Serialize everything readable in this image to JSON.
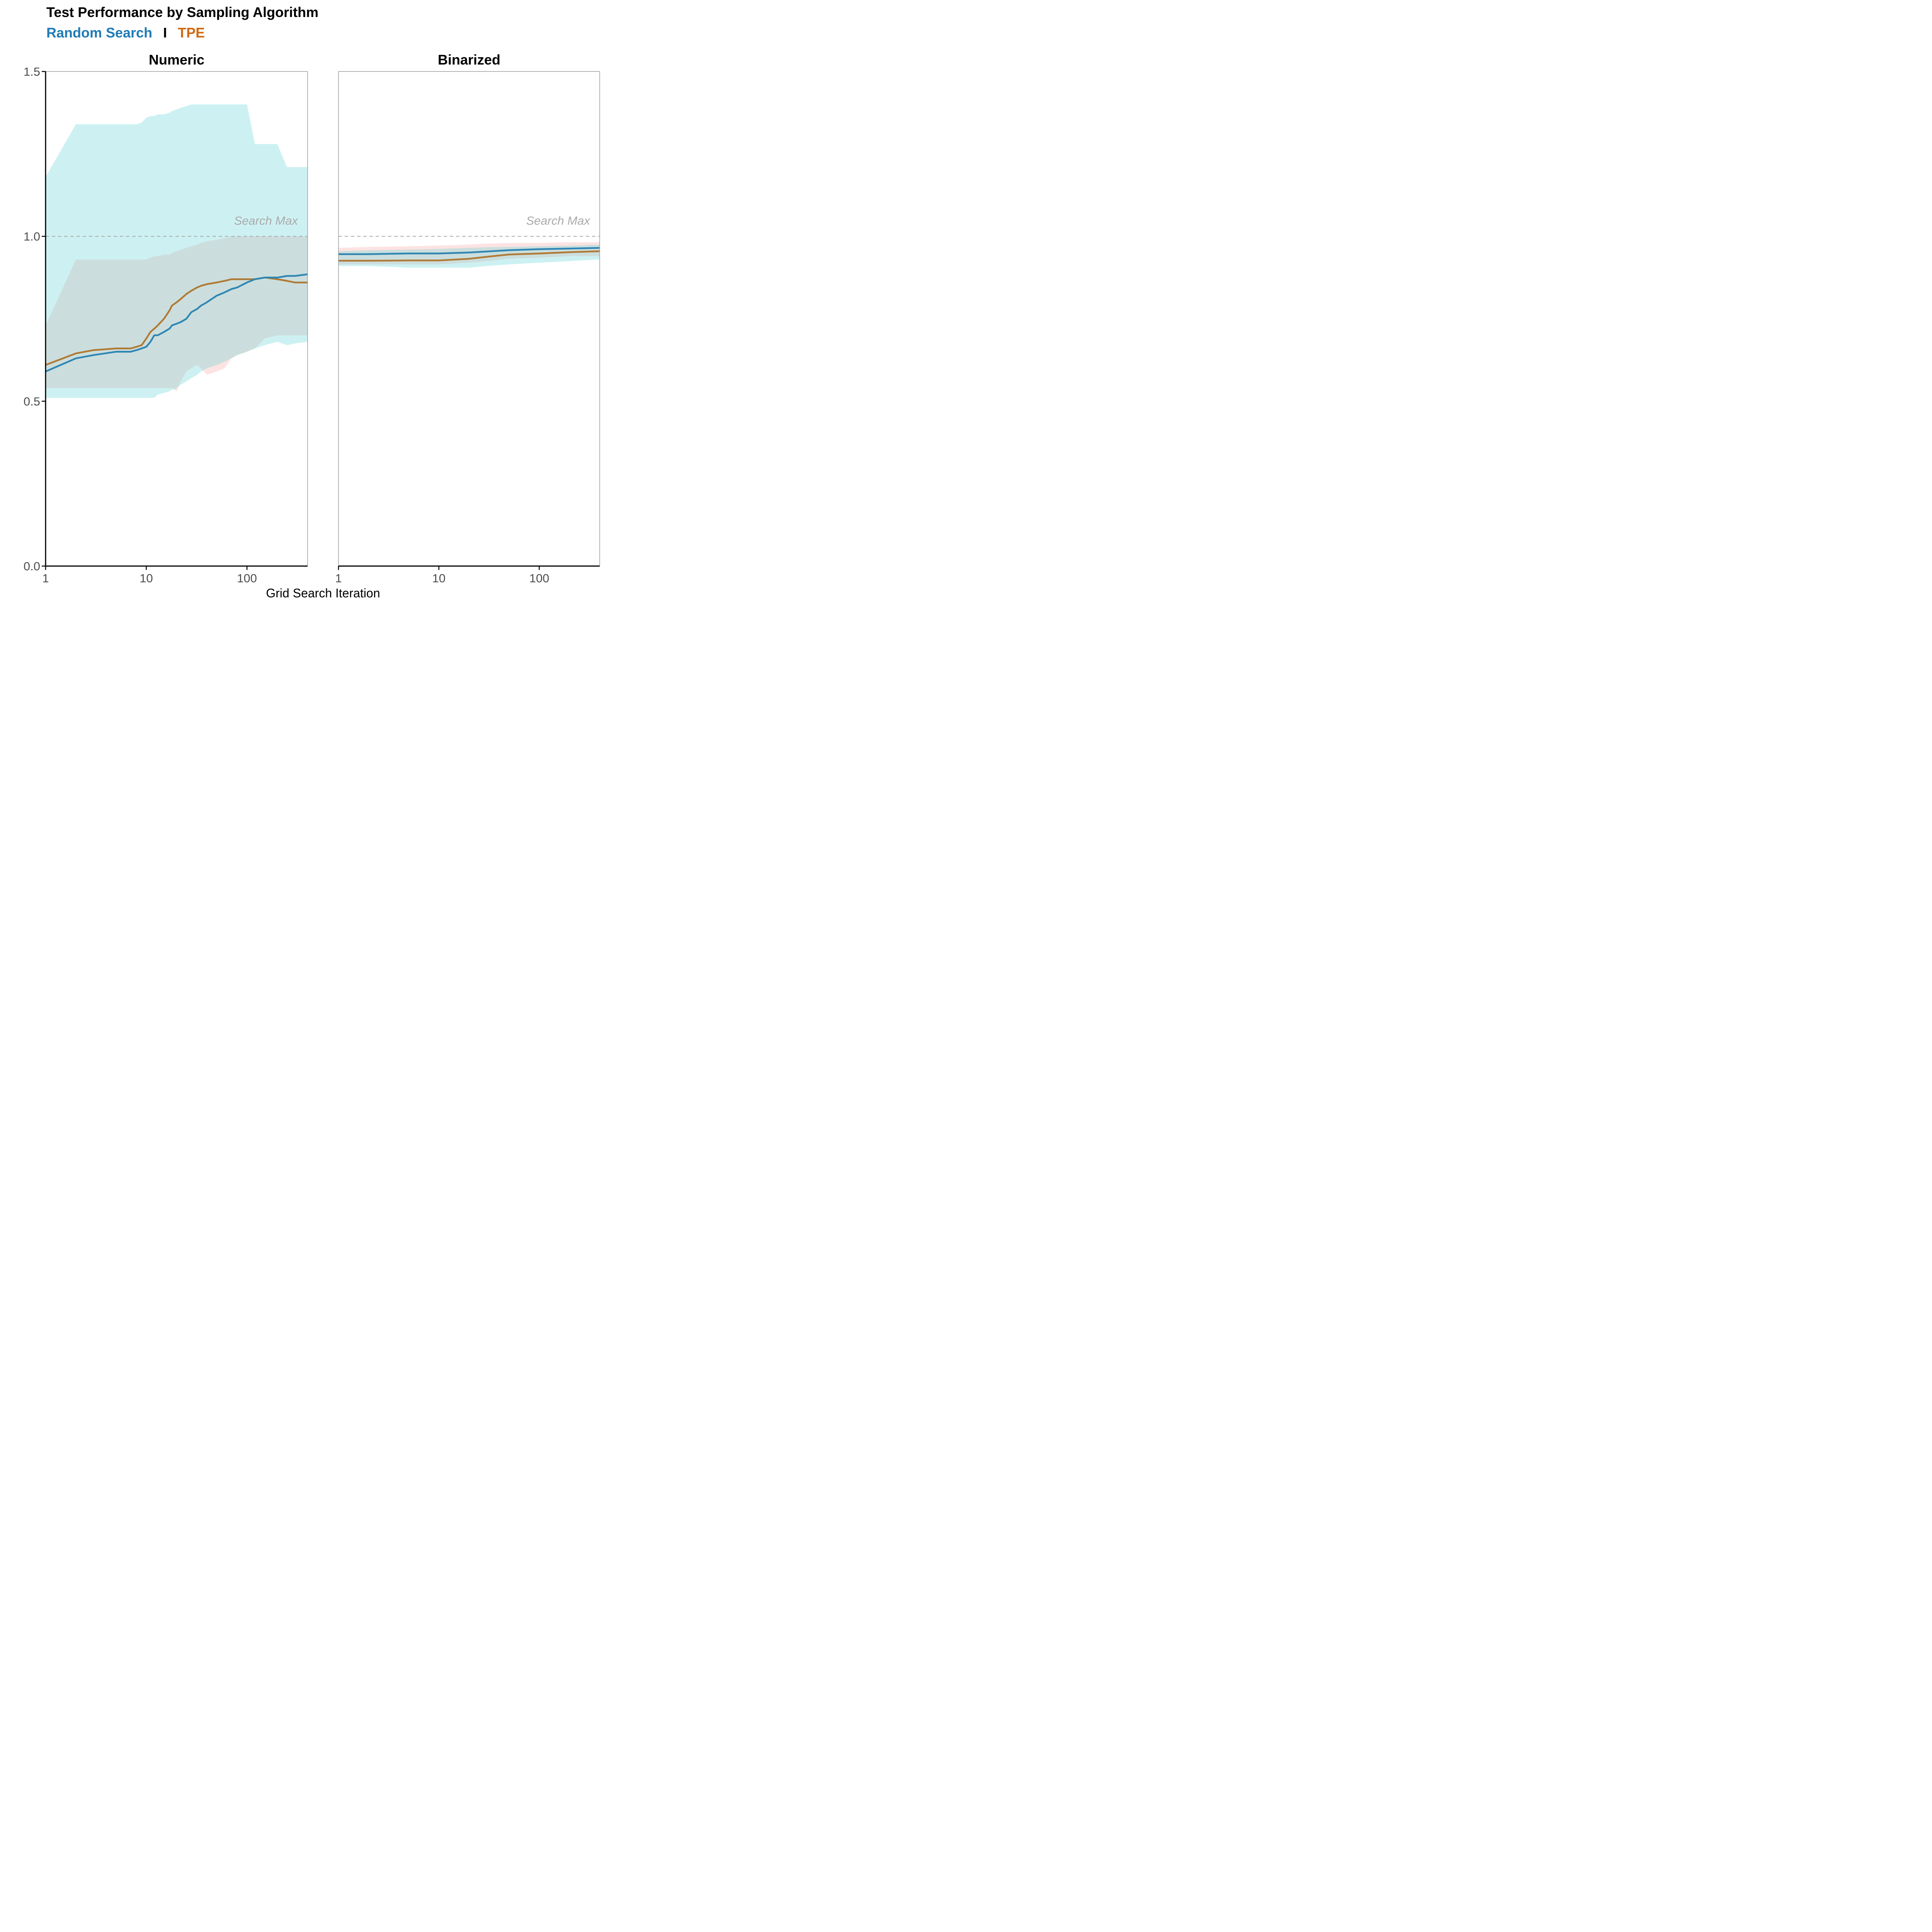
{
  "chart_data": {
    "type": "line",
    "title": "Test Performance by Sampling Algorithm",
    "subtitle": {
      "series_a": "Random Search",
      "separator": "I",
      "series_b": "TPE"
    },
    "xlabel": "Grid Search Iteration",
    "ylabel": "",
    "x_scale": "log",
    "xlim": [
      1,
      400
    ],
    "ylim": [
      0,
      1.5
    ],
    "x_ticks": [
      1,
      10,
      100
    ],
    "x_tick_labels": [
      "1",
      "10",
      "100"
    ],
    "y_ticks": [
      0,
      0.5,
      1.0,
      1.5
    ],
    "y_tick_labels": [
      "0.0",
      "0.5",
      "1.0",
      "1.5"
    ],
    "reference_line": {
      "y": 1.0,
      "label": "Search Max",
      "style": "dashed"
    },
    "colors": {
      "random_line": "#2f86b3",
      "tpe_line": "#b07a35",
      "random_band": "#cdf1f2",
      "tpe_band": "#fde3e3",
      "overlap_band": "#cbdedd",
      "random_title": "#1f7bb6",
      "tpe_title": "#d0690f",
      "reference": "#aaaaaa"
    },
    "panels": [
      {
        "name": "Numeric",
        "series": [
          {
            "name": "Random Search",
            "x": [
              1,
              2,
              3,
              5,
              7,
              8,
              9,
              10,
              11,
              12,
              13,
              15,
              17,
              18,
              20,
              22,
              25,
              28,
              32,
              35,
              40,
              50,
              60,
              70,
              80,
              100,
              120,
              150,
              200,
              250,
              300,
              400
            ],
            "mean": [
              0.59,
              0.63,
              0.64,
              0.65,
              0.65,
              0.655,
              0.66,
              0.665,
              0.68,
              0.7,
              0.7,
              0.71,
              0.72,
              0.73,
              0.735,
              0.74,
              0.75,
              0.77,
              0.78,
              0.79,
              0.8,
              0.82,
              0.83,
              0.84,
              0.845,
              0.86,
              0.87,
              0.875,
              0.875,
              0.88,
              0.88,
              0.885
            ],
            "lower": [
              0.51,
              0.51,
              0.51,
              0.51,
              0.51,
              0.51,
              0.51,
              0.51,
              0.51,
              0.51,
              0.52,
              0.525,
              0.53,
              0.535,
              0.54,
              0.55,
              0.56,
              0.57,
              0.58,
              0.59,
              0.6,
              0.61,
              0.62,
              0.63,
              0.64,
              0.65,
              0.66,
              0.67,
              0.68,
              0.67,
              0.675,
              0.68
            ],
            "upper": [
              1.18,
              1.34,
              1.34,
              1.34,
              1.34,
              1.34,
              1.345,
              1.36,
              1.365,
              1.365,
              1.37,
              1.37,
              1.375,
              1.38,
              1.385,
              1.39,
              1.395,
              1.4,
              1.4,
              1.4,
              1.4,
              1.4,
              1.4,
              1.4,
              1.4,
              1.4,
              1.28,
              1.28,
              1.28,
              1.21,
              1.21,
              1.21
            ]
          },
          {
            "name": "TPE",
            "x": [
              1,
              2,
              3,
              5,
              7,
              8,
              9,
              10,
              11,
              12,
              13,
              15,
              17,
              18,
              20,
              22,
              25,
              28,
              32,
              35,
              40,
              50,
              60,
              70,
              80,
              100,
              120,
              150,
              200,
              250,
              300,
              400
            ],
            "mean": [
              0.61,
              0.645,
              0.655,
              0.66,
              0.66,
              0.665,
              0.67,
              0.69,
              0.71,
              0.72,
              0.73,
              0.75,
              0.775,
              0.79,
              0.8,
              0.81,
              0.825,
              0.835,
              0.845,
              0.85,
              0.855,
              0.86,
              0.865,
              0.87,
              0.87,
              0.87,
              0.87,
              0.875,
              0.87,
              0.865,
              0.86,
              0.86
            ],
            "lower": [
              0.54,
              0.54,
              0.54,
              0.54,
              0.54,
              0.54,
              0.54,
              0.54,
              0.54,
              0.54,
              0.54,
              0.54,
              0.54,
              0.54,
              0.53,
              0.56,
              0.59,
              0.6,
              0.61,
              0.6,
              0.58,
              0.59,
              0.6,
              0.63,
              0.64,
              0.65,
              0.66,
              0.69,
              0.7,
              0.7,
              0.7,
              0.7
            ],
            "upper": [
              0.73,
              0.93,
              0.93,
              0.93,
              0.93,
              0.93,
              0.93,
              0.93,
              0.935,
              0.94,
              0.94,
              0.945,
              0.945,
              0.95,
              0.955,
              0.96,
              0.965,
              0.97,
              0.975,
              0.98,
              0.985,
              0.99,
              0.995,
              1.0,
              1.0,
              1.0,
              1.0,
              1.0,
              1.0,
              1.0,
              1.0,
              1.0
            ]
          }
        ]
      },
      {
        "name": "Binarized",
        "series": [
          {
            "name": "Random Search",
            "x": [
              1,
              2,
              5,
              10,
              20,
              30,
              50,
              100,
              200,
              400
            ],
            "mean": [
              0.946,
              0.946,
              0.948,
              0.948,
              0.951,
              0.954,
              0.958,
              0.961,
              0.963,
              0.965
            ],
            "lower": [
              0.91,
              0.91,
              0.905,
              0.905,
              0.905,
              0.91,
              0.915,
              0.92,
              0.925,
              0.93
            ],
            "upper": [
              0.955,
              0.958,
              0.96,
              0.962,
              0.965,
              0.967,
              0.968,
              0.97,
              0.972,
              0.975
            ]
          },
          {
            "name": "TPE",
            "x": [
              1,
              2,
              5,
              10,
              20,
              30,
              50,
              100,
              200,
              400
            ],
            "mean": [
              0.926,
              0.926,
              0.927,
              0.927,
              0.932,
              0.938,
              0.945,
              0.948,
              0.952,
              0.955
            ],
            "lower": [
              0.915,
              0.915,
              0.915,
              0.915,
              0.92,
              0.925,
              0.932,
              0.935,
              0.94,
              0.94
            ],
            "upper": [
              0.965,
              0.968,
              0.97,
              0.972,
              0.975,
              0.978,
              0.98,
              0.98,
              0.982,
              0.982
            ]
          }
        ]
      }
    ]
  }
}
